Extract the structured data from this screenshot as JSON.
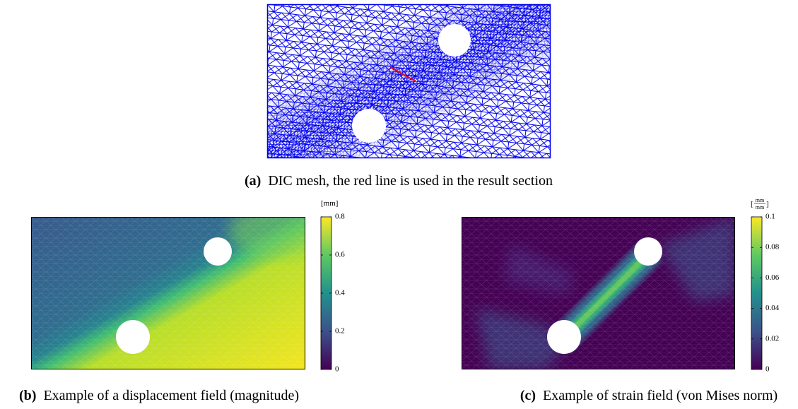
{
  "figures": [
    {
      "label": "(a)",
      "caption": "DIC mesh, the red line is used in the result section"
    },
    {
      "label": "(b)",
      "caption": "Example of a displacement field (magnitude)",
      "colorbar": {
        "unit": "[mm]",
        "clim": [
          0,
          0.8
        ],
        "ticks": [
          0,
          0.2,
          0.4,
          0.6,
          0.8
        ]
      }
    },
    {
      "label": "(c)",
      "caption": "Example of strain field (von Mises norm)",
      "colorbar": {
        "unit": {
          "open": "[",
          "numerator": "mm",
          "denominator": "mm",
          "close": "]"
        },
        "clim": [
          0,
          0.1
        ],
        "ticks": [
          0,
          0.02,
          0.04,
          0.06,
          0.08,
          0.1
        ]
      }
    }
  ]
}
